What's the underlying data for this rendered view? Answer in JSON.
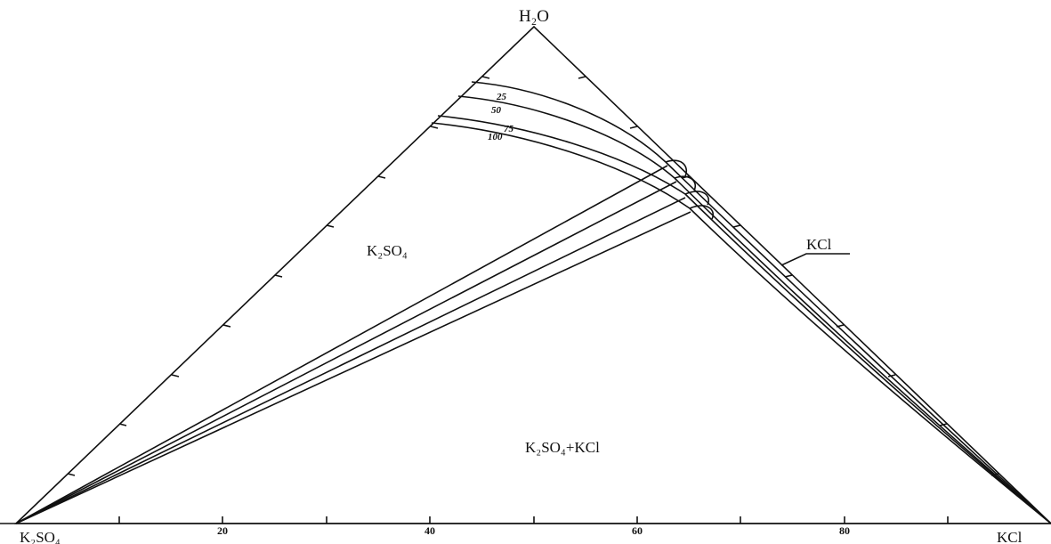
{
  "vertices": {
    "top": "H₂O",
    "left": "K₂SO₄",
    "right": "KCl"
  },
  "regions": {
    "k2so4": "K₂SO₄",
    "k2so4_kcl": "K₂SO₄+KCl",
    "kcl": "KCl"
  },
  "axis_ticks": [
    "20",
    "40",
    "60",
    "80"
  ],
  "isotherms": [
    {
      "label": "25"
    },
    {
      "label": "50"
    },
    {
      "label": "75"
    },
    {
      "label": "100"
    }
  ]
}
